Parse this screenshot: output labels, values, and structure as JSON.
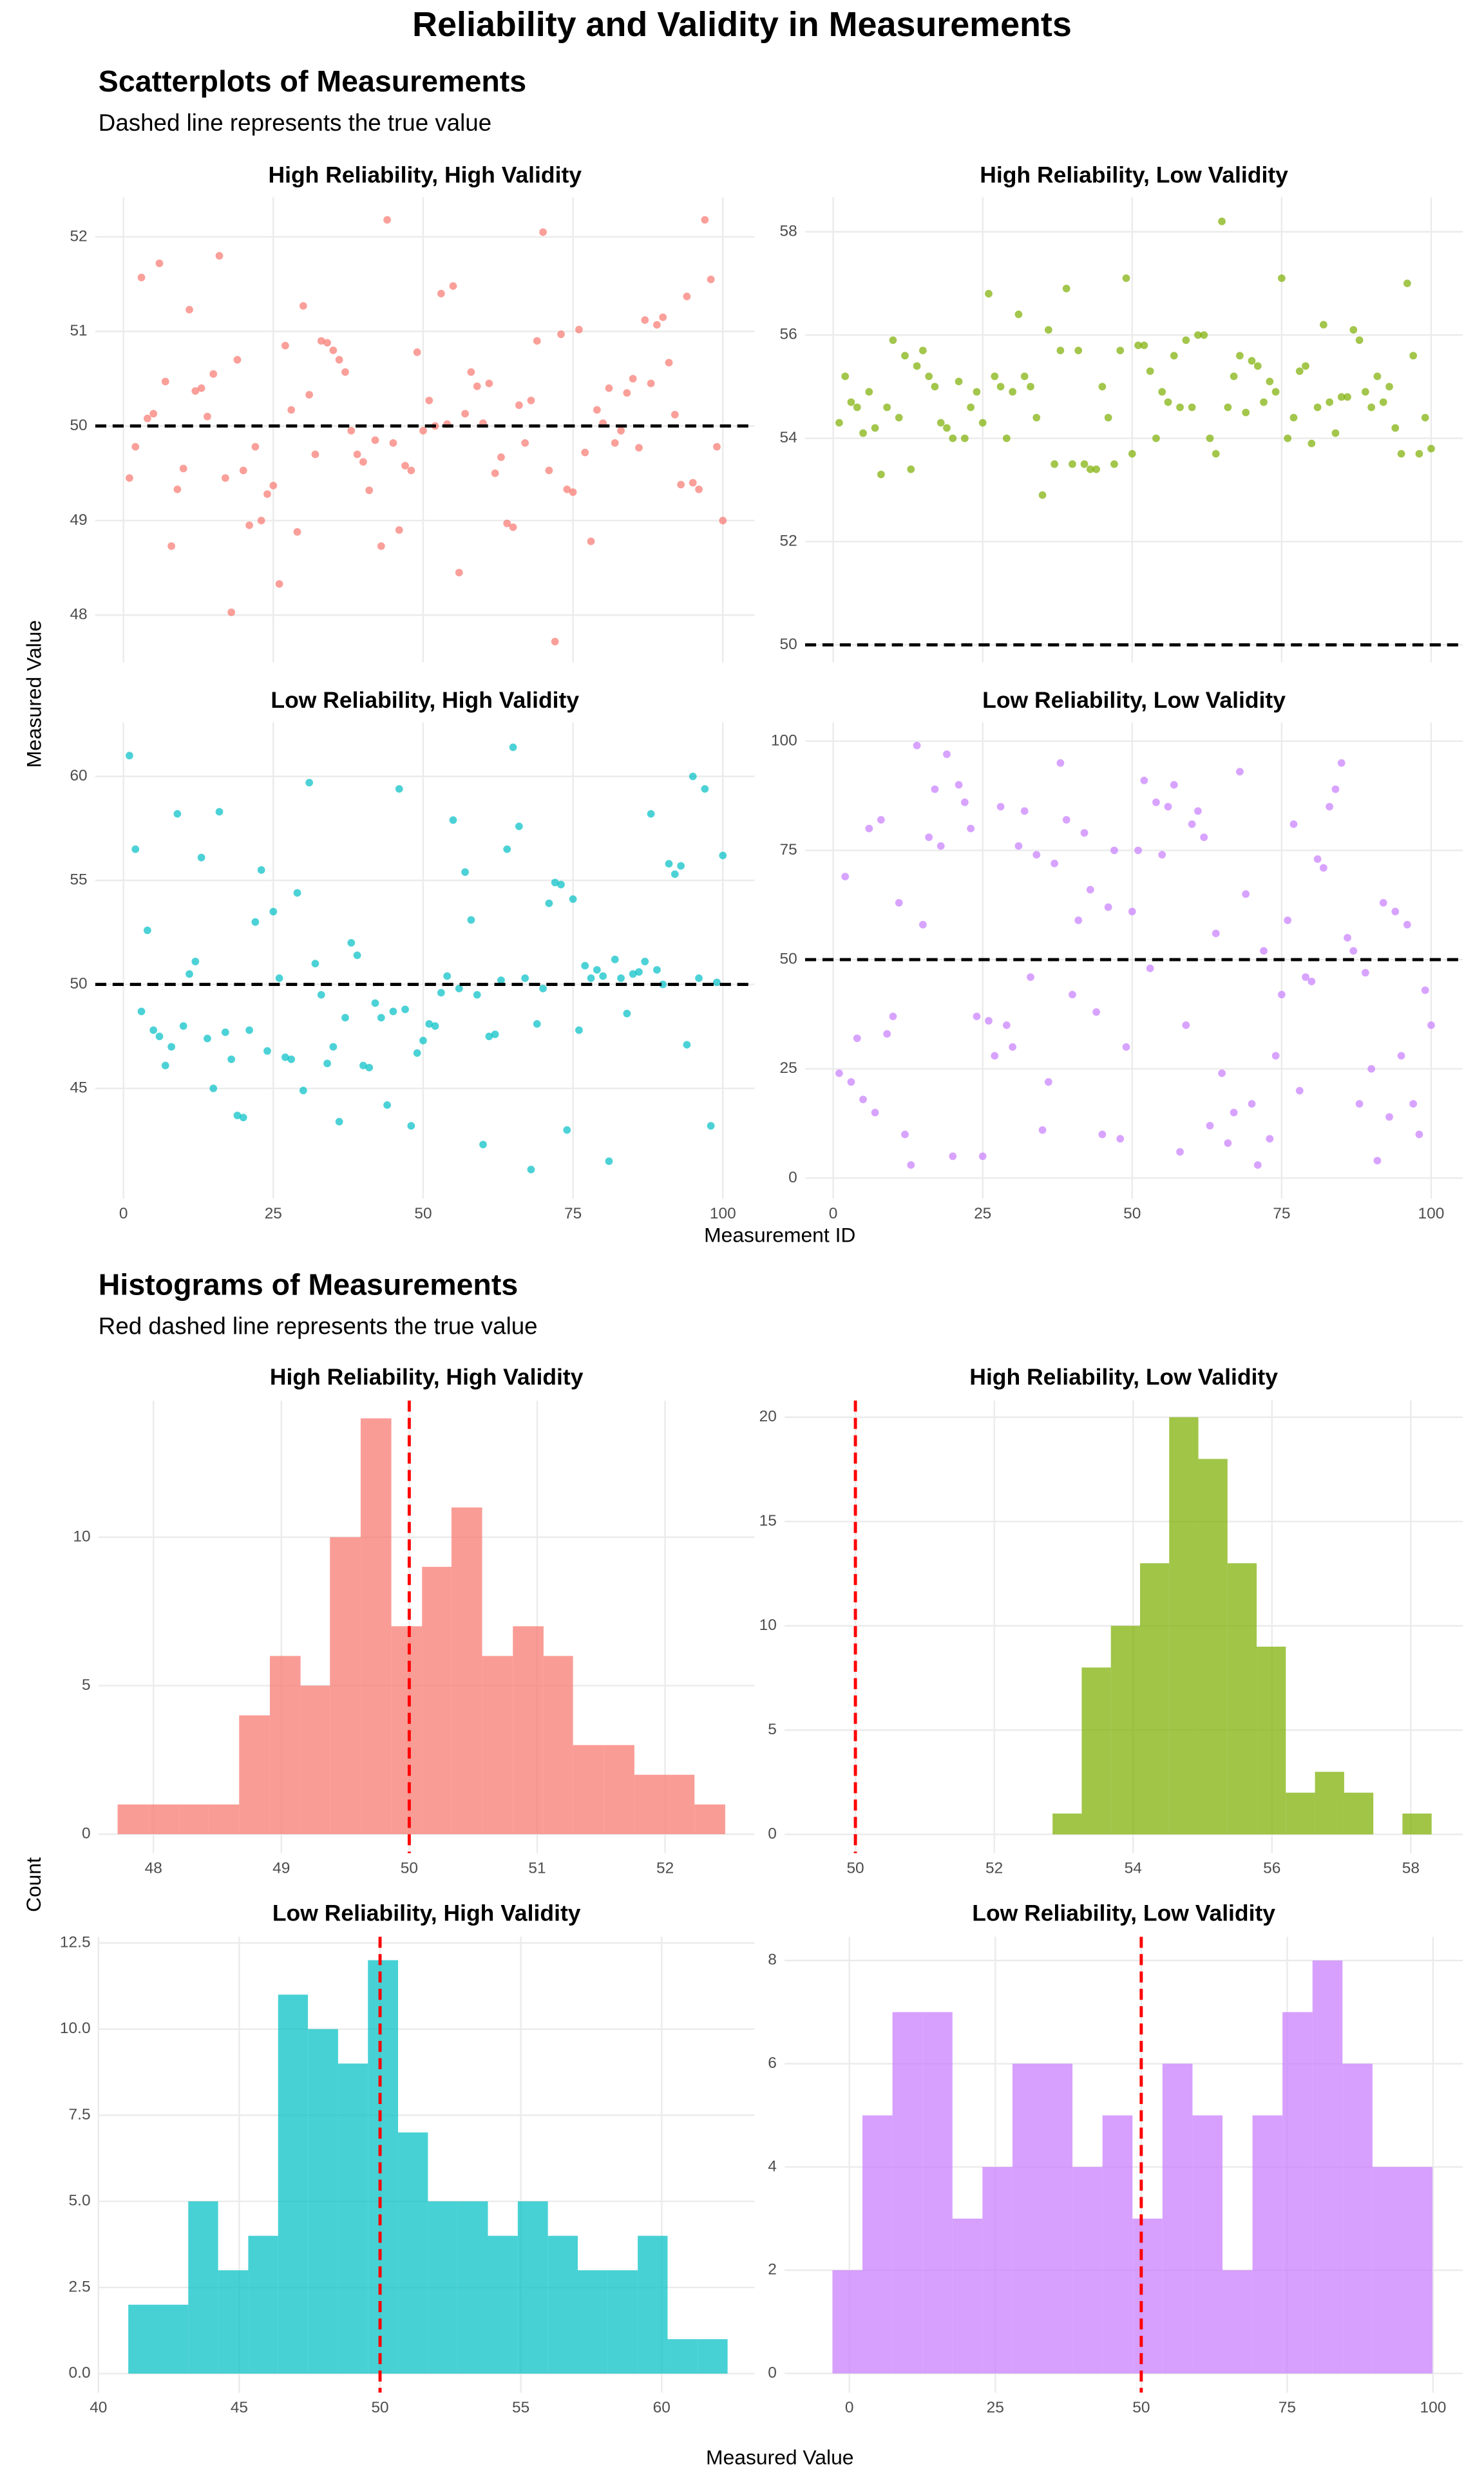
{
  "title": "Reliability and Validity in Measurements",
  "chart_data": [
    {
      "type": "scatter",
      "title": "Scatterplots of Measurements",
      "subtitle": "Dashed line represents the true value",
      "xlabel": "Measurement ID",
      "ylabel": "Measured Value",
      "x": [
        1,
        2,
        3,
        4,
        5,
        6,
        7,
        8,
        9,
        10,
        11,
        12,
        13,
        14,
        15,
        16,
        17,
        18,
        19,
        20,
        21,
        22,
        23,
        24,
        25,
        26,
        27,
        28,
        29,
        30,
        31,
        32,
        33,
        34,
        35,
        36,
        37,
        38,
        39,
        40,
        41,
        42,
        43,
        44,
        45,
        46,
        47,
        48,
        49,
        50,
        51,
        52,
        53,
        54,
        55,
        56,
        57,
        58,
        59,
        60,
        61,
        62,
        63,
        64,
        65,
        66,
        67,
        68,
        69,
        70,
        71,
        72,
        73,
        74,
        75,
        76,
        77,
        78,
        79,
        80,
        81,
        82,
        83,
        84,
        85,
        86,
        87,
        88,
        89,
        90,
        91,
        92,
        93,
        94,
        95,
        96,
        97,
        98,
        99,
        100
      ],
      "xlim": [
        -4.7,
        105.3
      ],
      "xticks": [
        0,
        25,
        50,
        75,
        100
      ],
      "true_value": 50,
      "line_color": "#000000",
      "panels": [
        {
          "title": "High Reliability, High Validity",
          "color": "#F8766D",
          "ylim": [
            47.5,
            52.42
          ],
          "yticks": [
            48,
            49,
            50,
            51,
            52
          ],
          "values": [
            49.45,
            49.78,
            51.57,
            50.08,
            50.13,
            51.72,
            50.47,
            48.73,
            49.33,
            49.55,
            51.23,
            50.37,
            50.4,
            50.1,
            50.55,
            51.8,
            49.45,
            48.03,
            50.7,
            49.53,
            48.95,
            49.78,
            49.0,
            49.28,
            49.37,
            48.33,
            50.85,
            50.17,
            48.88,
            51.27,
            50.33,
            49.7,
            50.9,
            50.88,
            50.8,
            50.7,
            50.57,
            49.95,
            49.7,
            49.62,
            49.32,
            49.85,
            48.73,
            52.18,
            49.82,
            48.9,
            49.58,
            49.53,
            50.78,
            49.95,
            50.27,
            50.0,
            51.4,
            50.02,
            51.48,
            48.45,
            50.13,
            50.57,
            50.42,
            50.03,
            50.45,
            49.5,
            49.67,
            48.97,
            48.93,
            50.22,
            49.82,
            50.27,
            50.9,
            52.05,
            49.53,
            47.72,
            50.97,
            49.33,
            49.3,
            51.02,
            49.72,
            48.78,
            50.17,
            50.03,
            50.4,
            49.82,
            49.95,
            50.35,
            50.5,
            49.77,
            51.12,
            50.45,
            51.07,
            51.15,
            50.67,
            50.12,
            49.38,
            51.37,
            49.4,
            49.33,
            52.18,
            51.55,
            49.78,
            49.0
          ]
        },
        {
          "title": "High Reliability, Low Validity",
          "color": "#7CAE00",
          "ylim": [
            49.66,
            58.67
          ],
          "yticks": [
            50,
            52,
            54,
            56,
            58
          ],
          "values": [
            54.3,
            55.2,
            54.7,
            54.6,
            54.1,
            54.9,
            54.2,
            53.3,
            54.6,
            55.9,
            54.4,
            55.6,
            53.4,
            55.4,
            55.7,
            55.2,
            55.0,
            54.3,
            54.2,
            54.0,
            55.1,
            54.0,
            54.6,
            54.9,
            54.3,
            56.8,
            55.2,
            55.0,
            54.0,
            54.9,
            56.4,
            55.2,
            55.0,
            54.4,
            52.9,
            56.1,
            53.5,
            55.7,
            56.9,
            53.5,
            55.7,
            53.5,
            53.4,
            53.4,
            55.0,
            54.4,
            53.5,
            55.7,
            57.1,
            53.7,
            55.8,
            55.8,
            55.3,
            54.0,
            54.9,
            54.7,
            55.6,
            54.6,
            55.9,
            54.6,
            56.0,
            56.0,
            54.0,
            53.7,
            58.2,
            54.6,
            55.2,
            55.6,
            54.5,
            55.5,
            55.4,
            54.7,
            55.1,
            54.9,
            57.1,
            54.0,
            54.4,
            55.3,
            55.4,
            53.9,
            54.6,
            56.2,
            54.7,
            54.1,
            54.8,
            54.8,
            56.1,
            55.9,
            54.9,
            54.6,
            55.2,
            54.7,
            55.0,
            54.2,
            53.7,
            57.0,
            55.6,
            53.7,
            54.4,
            53.8
          ]
        },
        {
          "title": "Low Reliability, High Validity",
          "color": "#00BFC4",
          "ylim": [
            39.7,
            62.6
          ],
          "yticks": [
            45,
            50,
            55,
            60
          ],
          "values": [
            61.0,
            56.5,
            48.7,
            52.6,
            47.8,
            47.5,
            46.1,
            47.0,
            58.2,
            48.0,
            50.5,
            51.1,
            56.1,
            47.4,
            45.0,
            58.3,
            47.7,
            46.4,
            43.7,
            43.6,
            47.8,
            53.0,
            55.5,
            46.8,
            53.5,
            50.3,
            46.5,
            46.4,
            54.4,
            44.9,
            59.7,
            51.0,
            49.5,
            46.2,
            47.0,
            43.4,
            48.4,
            52.0,
            51.4,
            46.1,
            46.0,
            49.1,
            48.4,
            44.2,
            48.7,
            59.4,
            48.8,
            43.2,
            46.7,
            47.3,
            48.1,
            48.0,
            49.6,
            50.4,
            57.9,
            49.8,
            55.4,
            53.1,
            49.5,
            42.3,
            47.5,
            47.6,
            50.2,
            56.5,
            61.4,
            57.6,
            50.3,
            41.1,
            48.1,
            49.8,
            53.9,
            54.9,
            54.8,
            43.0,
            54.1,
            47.8,
            50.9,
            50.3,
            50.7,
            50.4,
            41.5,
            51.2,
            50.3,
            48.6,
            50.5,
            50.6,
            51.1,
            58.2,
            50.7,
            50.0,
            55.8,
            55.3,
            55.7,
            47.1,
            60.0,
            50.3,
            59.4,
            43.2,
            50.1,
            56.2
          ]
        },
        {
          "title": "Low Reliability, Low Validity",
          "color": "#C77CFF",
          "ylim": [
            -4.7,
            104.3
          ],
          "yticks": [
            0,
            25,
            50,
            75,
            100
          ],
          "values": [
            24,
            69,
            22,
            32,
            18,
            80,
            15,
            82,
            33,
            37,
            63,
            10,
            3,
            99,
            58,
            78,
            89,
            76,
            97,
            5,
            90,
            86,
            80,
            37,
            5,
            36,
            28,
            85,
            35,
            30,
            76,
            84,
            46,
            74,
            11,
            22,
            72,
            95,
            82,
            42,
            59,
            79,
            66,
            38,
            10,
            62,
            75,
            9,
            30,
            61,
            75,
            91,
            48,
            86,
            74,
            85,
            90,
            6,
            35,
            81,
            84,
            78,
            12,
            56,
            24,
            8,
            15,
            93,
            65,
            17,
            3,
            52,
            9,
            28,
            42,
            59,
            81,
            20,
            46,
            45,
            73,
            71,
            85,
            89,
            95,
            55,
            52,
            17,
            47,
            25,
            4,
            63,
            14,
            61,
            28,
            58,
            17,
            10,
            43,
            35
          ]
        }
      ]
    },
    {
      "type": "histogram",
      "title": "Histograms of Measurements",
      "subtitle": "Red dashed line represents the true value",
      "xlabel": "Measured Value",
      "ylabel": "Count",
      "true_value": 50,
      "line_color": "#FF0000",
      "panels": [
        {
          "title": "High Reliability, High Validity",
          "color": "#F8766D",
          "xlim": [
            47.57,
            52.7
          ],
          "xticks": [
            48,
            49,
            50,
            51,
            52
          ],
          "ylim": [
            -0.64,
            14.6
          ],
          "yticks": [
            0,
            5,
            10
          ],
          "bins": [
            47.72,
            47.96,
            48.2,
            48.43,
            48.67,
            48.91,
            49.15,
            49.38,
            49.62,
            49.86,
            50.1,
            50.33,
            50.57,
            50.81,
            51.05,
            51.28,
            51.52,
            51.76,
            52.0,
            52.23,
            52.47
          ],
          "counts": [
            1,
            1,
            1,
            1,
            4,
            6,
            5,
            10,
            14,
            7,
            9,
            11,
            6,
            7,
            6,
            3,
            3,
            2,
            2,
            1
          ]
        },
        {
          "title": "High Reliability, Low Validity",
          "color": "#7CAE00",
          "xlim": [
            48.98,
            58.75
          ],
          "xticks": [
            50,
            52,
            54,
            56,
            58
          ],
          "ylim": [
            -0.9,
            20.8
          ],
          "yticks": [
            0,
            5,
            10,
            15,
            20
          ],
          "bins": [
            52.84,
            53.26,
            53.68,
            54.1,
            54.52,
            54.94,
            55.36,
            55.78,
            56.2,
            56.62,
            57.04,
            57.46,
            57.88,
            58.3
          ],
          "counts": [
            1,
            8,
            10,
            13,
            20,
            18,
            13,
            9,
            2,
            3,
            2,
            0,
            1
          ]
        },
        {
          "title": "Low Reliability, High Validity",
          "color": "#00BFC4",
          "xlim": [
            40,
            63.3
          ],
          "xticks": [
            40,
            45,
            50,
            55,
            60
          ],
          "ylim": [
            -0.55,
            12.68
          ],
          "yticks": [
            {
              "value": 0,
              "label": "0.0"
            },
            2.5,
            {
              "value": 5,
              "label": "5.0"
            },
            7.5,
            {
              "value": 10,
              "label": "10.0"
            },
            12.5
          ],
          "bins": [
            41.06,
            42.12,
            43.19,
            44.25,
            45.32,
            46.38,
            47.44,
            48.51,
            49.57,
            50.64,
            51.7,
            52.76,
            53.83,
            54.89,
            55.96,
            57.02,
            58.08,
            59.15,
            60.21,
            61.28,
            62.34
          ],
          "counts": [
            2,
            2,
            5,
            3,
            4,
            11,
            10,
            9,
            12,
            7,
            5,
            5,
            4,
            5,
            4,
            3,
            3,
            4,
            1,
            1
          ]
        },
        {
          "title": "Low Reliability, Low Validity",
          "color": "#C77CFF",
          "xlim": [
            -11.1,
            105.1
          ],
          "xticks": [
            0,
            25,
            50,
            75,
            100
          ],
          "ylim": [
            -0.37,
            8.46
          ],
          "yticks": [
            0,
            2,
            4,
            6,
            8
          ],
          "bins": [
            -2.9,
            2.24,
            7.38,
            12.52,
            17.66,
            22.8,
            27.94,
            33.08,
            38.22,
            43.36,
            48.5,
            53.64,
            58.78,
            63.92,
            69.06,
            74.2,
            79.34,
            84.48,
            89.62,
            94.76,
            99.9
          ],
          "counts": [
            2,
            5,
            7,
            7,
            3,
            4,
            6,
            6,
            4,
            5,
            3,
            6,
            5,
            2,
            5,
            7,
            8,
            6,
            4,
            4
          ]
        }
      ]
    }
  ]
}
